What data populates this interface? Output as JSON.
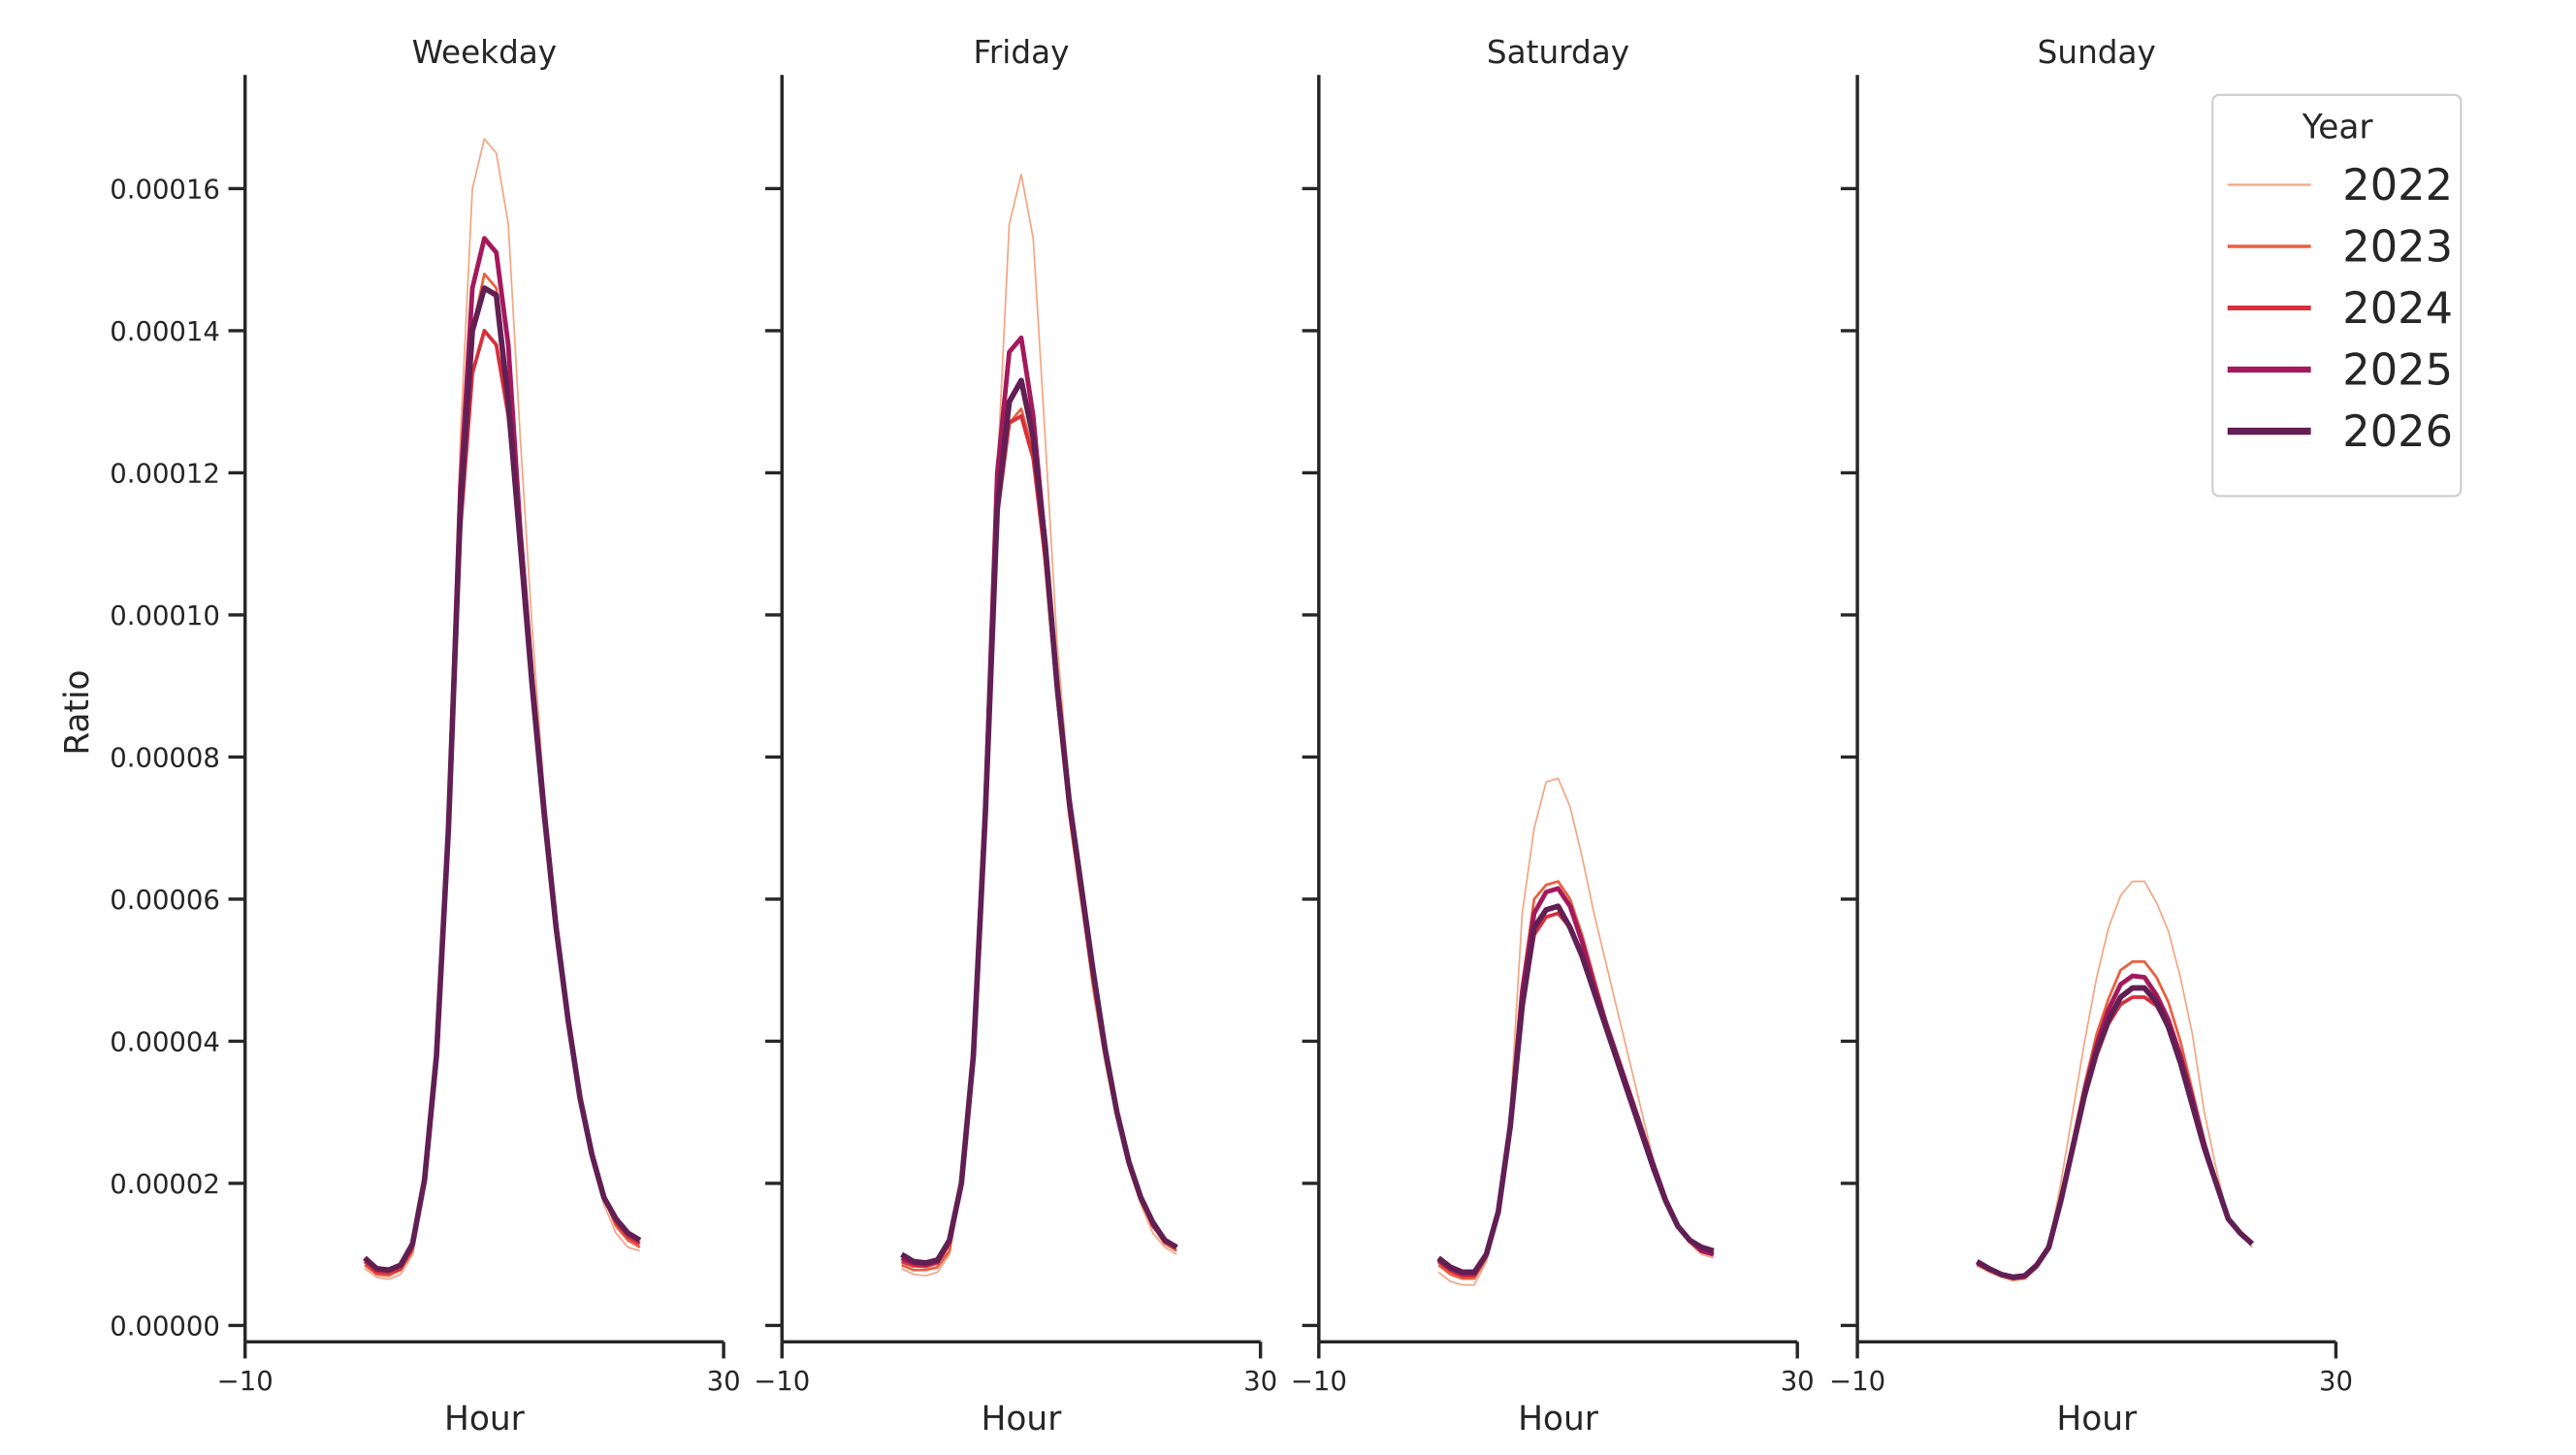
{
  "chart_data": [
    {
      "type": "line",
      "title": "Weekday",
      "xlabel": "Hour",
      "ylabel": "Ratio",
      "x": [
        0,
        1,
        2,
        3,
        4,
        5,
        6,
        7,
        8,
        9,
        10,
        11,
        12,
        13,
        14,
        15,
        16,
        17,
        18,
        19,
        20,
        21,
        22,
        23
      ],
      "xlim": [
        -10,
        30
      ],
      "xticks": [
        {
          "value": -10,
          "label": "−10"
        },
        30
      ],
      "ylim": [
        -2.3e-06,
        0.000176
      ],
      "yticks": [
        {
          "value": 0,
          "label": "0.00000"
        },
        {
          "value": 2e-05,
          "label": "0.00002"
        },
        {
          "value": 4e-05,
          "label": "0.00004"
        },
        {
          "value": 6e-05,
          "label": "0.00006"
        },
        {
          "value": 8e-05,
          "label": "0.00008"
        },
        {
          "value": 0.0001,
          "label": "0.00010"
        },
        {
          "value": 0.00012,
          "label": "0.00012"
        },
        {
          "value": 0.00014,
          "label": "0.00014"
        },
        {
          "value": 0.00016,
          "label": "0.00016"
        }
      ],
      "series": [
        {
          "color": "#f4a582",
          "linewidth": 1,
          "values": [
            8e-06,
            6.8e-06,
            6.5e-06,
            7.2e-06,
            1e-05,
            2e-05,
            3.8e-05,
            7.2e-05,
            0.000125,
            0.00016,
            0.000167,
            0.000165,
            0.000155,
            0.000125,
            9.8e-05,
            7.5e-05,
            5.6e-05,
            4.2e-05,
            3.1e-05,
            2.3e-05,
            1.7e-05,
            1.3e-05,
            1.1e-05,
            1.05e-05
          ]
        },
        {
          "color": "#e8603f",
          "linewidth": 1.6,
          "values": [
            8.5e-06,
            7.2e-06,
            7e-06,
            7.8e-06,
            1.05e-05,
            2e-05,
            3.8e-05,
            7e-05,
            0.000116,
            0.00014,
            0.000148,
            0.000146,
            0.000132,
            0.00011,
            9e-05,
            7.2e-05,
            5.6e-05,
            4.3e-05,
            3.2e-05,
            2.4e-05,
            1.8e-05,
            1.4e-05,
            1.2e-05,
            1.1e-05
          ]
        },
        {
          "color": "#d72f3c",
          "linewidth": 2.2,
          "values": [
            9e-06,
            7.5e-06,
            7.4e-06,
            8e-06,
            1.1e-05,
            2e-05,
            3.8e-05,
            7e-05,
            0.000112,
            0.000134,
            0.00014,
            0.000138,
            0.000128,
            0.00011,
            9e-05,
            7.2e-05,
            5.6e-05,
            4.3e-05,
            3.2e-05,
            2.4e-05,
            1.8e-05,
            1.45e-05,
            1.25e-05,
            1.15e-05
          ]
        },
        {
          "color": "#a3195b",
          "linewidth": 2.8,
          "values": [
            9.5e-06,
            8e-06,
            7.8e-06,
            8.5e-06,
            1.15e-05,
            2.05e-05,
            3.8e-05,
            7e-05,
            0.000118,
            0.000146,
            0.000153,
            0.000151,
            0.000138,
            0.000112,
            9.1e-05,
            7.3e-05,
            5.6e-05,
            4.3e-05,
            3.2e-05,
            2.4e-05,
            1.8e-05,
            1.5e-05,
            1.3e-05,
            1.2e-05
          ]
        },
        {
          "color": "#611f53",
          "linewidth": 3.3,
          "values": [
            9.5e-06,
            8e-06,
            7.8e-06,
            8.5e-06,
            1.15e-05,
            2.05e-05,
            3.8e-05,
            7e-05,
            0.000115,
            0.00014,
            0.000146,
            0.000145,
            0.00013,
            0.00011,
            9e-05,
            7.2e-05,
            5.6e-05,
            4.3e-05,
            3.2e-05,
            2.4e-05,
            1.8e-05,
            1.5e-05,
            1.3e-05,
            1.2e-05
          ]
        }
      ]
    },
    {
      "type": "line",
      "title": "Friday",
      "xlabel": "Hour",
      "x": [
        0,
        1,
        2,
        3,
        4,
        5,
        6,
        7,
        8,
        9,
        10,
        11,
        12,
        13,
        14,
        15,
        16,
        17,
        18,
        19,
        20,
        21,
        22,
        23
      ],
      "xlim": [
        -10,
        30
      ],
      "xticks": [
        {
          "value": -10,
          "label": "−10"
        },
        30
      ],
      "ylim": [
        -2.3e-06,
        0.000176
      ],
      "series": [
        {
          "color": "#f4a582",
          "linewidth": 1,
          "values": [
            8e-06,
            7.2e-06,
            7e-06,
            7.5e-06,
            1e-05,
            2e-05,
            3.8e-05,
            7.5e-05,
            0.00012,
            0.000155,
            0.000162,
            0.000153,
            0.000125,
            9.6e-05,
            7.6e-05,
            6e-05,
            4.7e-05,
            3.7e-05,
            2.9e-05,
            2.2e-05,
            1.7e-05,
            1.3e-05,
            1.1e-05,
            1e-05
          ]
        },
        {
          "color": "#e8603f",
          "linewidth": 1.6,
          "values": [
            8.5e-06,
            7.8e-06,
            7.8e-06,
            8.2e-06,
            1.05e-05,
            2e-05,
            3.8e-05,
            7.2e-05,
            0.000115,
            0.000127,
            0.000129,
            0.000123,
            0.000107,
            8.8e-05,
            7.2e-05,
            6e-05,
            4.8e-05,
            3.8e-05,
            2.95e-05,
            2.25e-05,
            1.75e-05,
            1.4e-05,
            1.15e-05,
            1.05e-05
          ]
        },
        {
          "color": "#d72f3c",
          "linewidth": 2.2,
          "values": [
            9e-06,
            8.4e-06,
            8.3e-06,
            8.8e-06,
            1.15e-05,
            2e-05,
            3.8e-05,
            7.2e-05,
            0.000114,
            0.000127,
            0.000128,
            0.000122,
            0.000108,
            8.9e-05,
            7.3e-05,
            6.1e-05,
            4.9e-05,
            3.9e-05,
            3e-05,
            2.3e-05,
            1.8e-05,
            1.4e-05,
            1.2e-05,
            1.1e-05
          ]
        },
        {
          "color": "#a3195b",
          "linewidth": 2.8,
          "values": [
            9.5e-06,
            8.8e-06,
            8.6e-06,
            9e-06,
            1.2e-05,
            2e-05,
            3.8e-05,
            7.3e-05,
            0.00012,
            0.000137,
            0.000139,
            0.000128,
            0.00011,
            9e-05,
            7.4e-05,
            6.2e-05,
            5e-05,
            3.9e-05,
            3e-05,
            2.3e-05,
            1.8e-05,
            1.45e-05,
            1.2e-05,
            1.1e-05
          ]
        },
        {
          "color": "#611f53",
          "linewidth": 3.3,
          "values": [
            1e-05,
            9e-06,
            8.8e-06,
            9.2e-06,
            1.2e-05,
            2e-05,
            3.8e-05,
            7.2e-05,
            0.000115,
            0.00013,
            0.000133,
            0.000125,
            0.00011,
            9e-05,
            7.4e-05,
            6.2e-05,
            5e-05,
            3.9e-05,
            3e-05,
            2.3e-05,
            1.8e-05,
            1.45e-05,
            1.2e-05,
            1.1e-05
          ]
        }
      ]
    },
    {
      "type": "line",
      "title": "Saturday",
      "xlabel": "Hour",
      "x": [
        0,
        1,
        2,
        3,
        4,
        5,
        6,
        7,
        8,
        9,
        10,
        11,
        12,
        13,
        14,
        15,
        16,
        17,
        18,
        19,
        20,
        21,
        22,
        23
      ],
      "xlim": [
        -10,
        30
      ],
      "xticks": [
        {
          "value": -10,
          "label": "−10"
        },
        30
      ],
      "ylim": [
        -2.3e-06,
        0.000176
      ],
      "series": [
        {
          "color": "#f4a582",
          "linewidth": 1,
          "values": [
            7.5e-06,
            6.2e-06,
            5.7e-06,
            5.7e-06,
            9e-06,
            1.6e-05,
            3e-05,
            5.8e-05,
            7e-05,
            7.65e-05,
            7.7e-05,
            7.3e-05,
            6.6e-05,
            5.8e-05,
            5.1e-05,
            4.4e-05,
            3.7e-05,
            3e-05,
            2.3e-05,
            1.8e-05,
            1.4e-05,
            1.15e-05,
            1e-05,
            9.5e-06
          ]
        },
        {
          "color": "#e8603f",
          "linewidth": 1.6,
          "values": [
            8.5e-06,
            7.2e-06,
            6.6e-06,
            6.6e-06,
            9.5e-06,
            1.6e-05,
            2.9e-05,
            4.8e-05,
            6e-05,
            6.2e-05,
            6.25e-05,
            6e-05,
            5.5e-05,
            4.9e-05,
            4.3e-05,
            3.8e-05,
            3.3e-05,
            2.8e-05,
            2.25e-05,
            1.75e-05,
            1.4e-05,
            1.2e-05,
            1.05e-05,
            1e-05
          ]
        },
        {
          "color": "#d72f3c",
          "linewidth": 2.2,
          "values": [
            9e-06,
            7.7e-06,
            7e-06,
            7e-06,
            9.8e-06,
            1.6e-05,
            2.8e-05,
            4.5e-05,
            5.5e-05,
            5.75e-05,
            5.8e-05,
            5.6e-05,
            5.2e-05,
            4.7e-05,
            4.2e-05,
            3.7e-05,
            3.2e-05,
            2.7e-05,
            2.2e-05,
            1.75e-05,
            1.4e-05,
            1.2e-05,
            1.05e-05,
            1e-05
          ]
        },
        {
          "color": "#a3195b",
          "linewidth": 2.8,
          "values": [
            9.3e-06,
            8e-06,
            7.3e-06,
            7.3e-06,
            1e-05,
            1.6e-05,
            2.8e-05,
            4.7e-05,
            5.8e-05,
            6.1e-05,
            6.15e-05,
            5.9e-05,
            5.4e-05,
            4.8e-05,
            4.25e-05,
            3.75e-05,
            3.25e-05,
            2.75e-05,
            2.25e-05,
            1.77e-05,
            1.4e-05,
            1.2e-05,
            1.05e-05,
            1e-05
          ]
        },
        {
          "color": "#611f53",
          "linewidth": 3.3,
          "values": [
            9.5e-06,
            8.2e-06,
            7.5e-06,
            7.5e-06,
            1e-05,
            1.6e-05,
            2.8e-05,
            4.5e-05,
            5.6e-05,
            5.85e-05,
            5.9e-05,
            5.6e-05,
            5.2e-05,
            4.7e-05,
            4.2e-05,
            3.7e-05,
            3.2e-05,
            2.7e-05,
            2.2e-05,
            1.75e-05,
            1.4e-05,
            1.2e-05,
            1.1e-05,
            1.05e-05
          ]
        }
      ]
    },
    {
      "type": "line",
      "title": "Sunday",
      "xlabel": "Hour",
      "legend_title": "Year",
      "legend": "upper right",
      "x": [
        0,
        1,
        2,
        3,
        4,
        5,
        6,
        7,
        8,
        9,
        10,
        11,
        12,
        13,
        14,
        15,
        16,
        17,
        18,
        19,
        20,
        21,
        22,
        23
      ],
      "xlim": [
        -10,
        30
      ],
      "xticks": [
        {
          "value": -10,
          "label": "−10"
        },
        30
      ],
      "ylim": [
        -2.3e-06,
        0.000176
      ],
      "series": [
        {
          "name": "2022",
          "color": "#f4a582",
          "linewidth": 1,
          "values": [
            8.5e-06,
            7.5e-06,
            6.8e-06,
            6.3e-06,
            6.5e-06,
            8e-06,
            1.1e-05,
            2e-05,
            3e-05,
            4e-05,
            4.9e-05,
            5.6e-05,
            6.05e-05,
            6.25e-05,
            6.25e-05,
            5.95e-05,
            5.55e-05,
            4.9e-05,
            4.1e-05,
            3e-05,
            2.2e-05,
            1.5e-05,
            1.3e-05,
            1.1e-05
          ]
        },
        {
          "name": "2023",
          "color": "#e8603f",
          "linewidth": 1.6,
          "values": [
            8.5e-06,
            7.7e-06,
            7e-06,
            6.5e-06,
            6.7e-06,
            8.2e-06,
            1.1e-05,
            1.8e-05,
            2.6e-05,
            3.4e-05,
            4.1e-05,
            4.6e-05,
            5e-05,
            5.12e-05,
            5.12e-05,
            4.9e-05,
            4.55e-05,
            4e-05,
            3.3e-05,
            2.6e-05,
            2e-05,
            1.5e-05,
            1.3e-05,
            1.15e-05
          ]
        },
        {
          "name": "2024",
          "color": "#d72f3c",
          "linewidth": 2.2,
          "values": [
            8.7e-06,
            7.8e-06,
            7.1e-06,
            6.6e-06,
            6.8e-06,
            8.3e-06,
            1.1e-05,
            1.75e-05,
            2.5e-05,
            3.2e-05,
            3.8e-05,
            4.25e-05,
            4.52e-05,
            4.62e-05,
            4.62e-05,
            4.5e-05,
            4.2e-05,
            3.75e-05,
            3.2e-05,
            2.55e-05,
            2e-05,
            1.5e-05,
            1.3e-05,
            1.15e-05
          ]
        },
        {
          "name": "2025",
          "color": "#a3195b",
          "linewidth": 2.8,
          "values": [
            9e-06,
            8e-06,
            7.2e-06,
            6.8e-06,
            7e-06,
            8.5e-06,
            1.1e-05,
            1.75e-05,
            2.5e-05,
            3.3e-05,
            3.95e-05,
            4.45e-05,
            4.8e-05,
            4.92e-05,
            4.9e-05,
            4.65e-05,
            4.3e-05,
            3.8e-05,
            3.2e-05,
            2.55e-05,
            2e-05,
            1.5e-05,
            1.3e-05,
            1.15e-05
          ]
        },
        {
          "name": "2026",
          "color": "#611f53",
          "linewidth": 3.3,
          "values": [
            9e-06,
            8e-06,
            7.2e-06,
            6.8e-06,
            7e-06,
            8.5e-06,
            1.1e-05,
            1.75e-05,
            2.5e-05,
            3.25e-05,
            3.85e-05,
            4.3e-05,
            4.62e-05,
            4.75e-05,
            4.75e-05,
            4.55e-05,
            4.2e-05,
            3.7e-05,
            3.1e-05,
            2.5e-05,
            2e-05,
            1.5e-05,
            1.3e-05,
            1.15e-05
          ]
        }
      ]
    }
  ]
}
